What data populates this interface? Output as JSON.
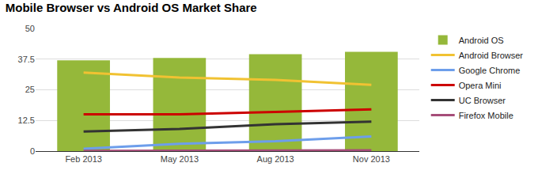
{
  "chart_data": {
    "type": "bar",
    "title": "Mobile Browser vs Android OS Market Share",
    "categories": [
      "Feb 2013",
      "May 2013",
      "Aug 2013",
      "Nov 2013"
    ],
    "series": [
      {
        "name": "Android OS",
        "type": "bar",
        "color": "#95b83a",
        "values": [
          37,
          38,
          39.5,
          40.5
        ]
      },
      {
        "name": "Android Browser",
        "type": "line",
        "color": "#f1c232",
        "values": [
          32,
          30,
          29,
          27
        ]
      },
      {
        "name": "Google Chrome",
        "type": "line",
        "color": "#6d9eeb",
        "values": [
          1,
          3,
          4,
          6
        ]
      },
      {
        "name": "Opera Mini",
        "type": "line",
        "color": "#cc0000",
        "values": [
          15,
          15,
          16,
          17
        ]
      },
      {
        "name": "UC Browser",
        "type": "line",
        "color": "#333333",
        "values": [
          8,
          9,
          11,
          12
        ]
      },
      {
        "name": "Firefox Mobile",
        "type": "line",
        "color": "#a64d79",
        "values": [
          0.1,
          0.2,
          0.2,
          0.3
        ]
      }
    ],
    "ylim": [
      0,
      50
    ],
    "yticks": [
      0,
      12.5,
      25,
      37.5,
      50
    ],
    "grid": true,
    "legend": "right"
  }
}
